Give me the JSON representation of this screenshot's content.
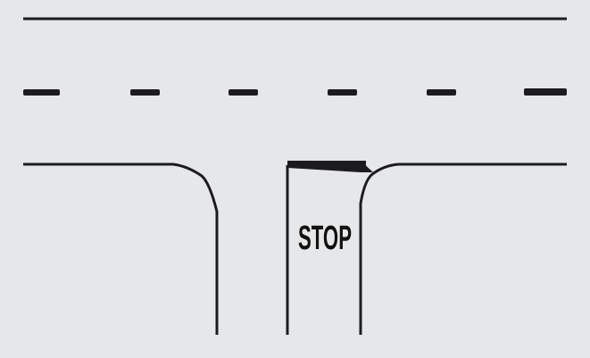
{
  "diagram": {
    "stop_marking": "STOP",
    "colors": {
      "background": "#e6e7e9",
      "line": "#1c1c1e"
    }
  }
}
